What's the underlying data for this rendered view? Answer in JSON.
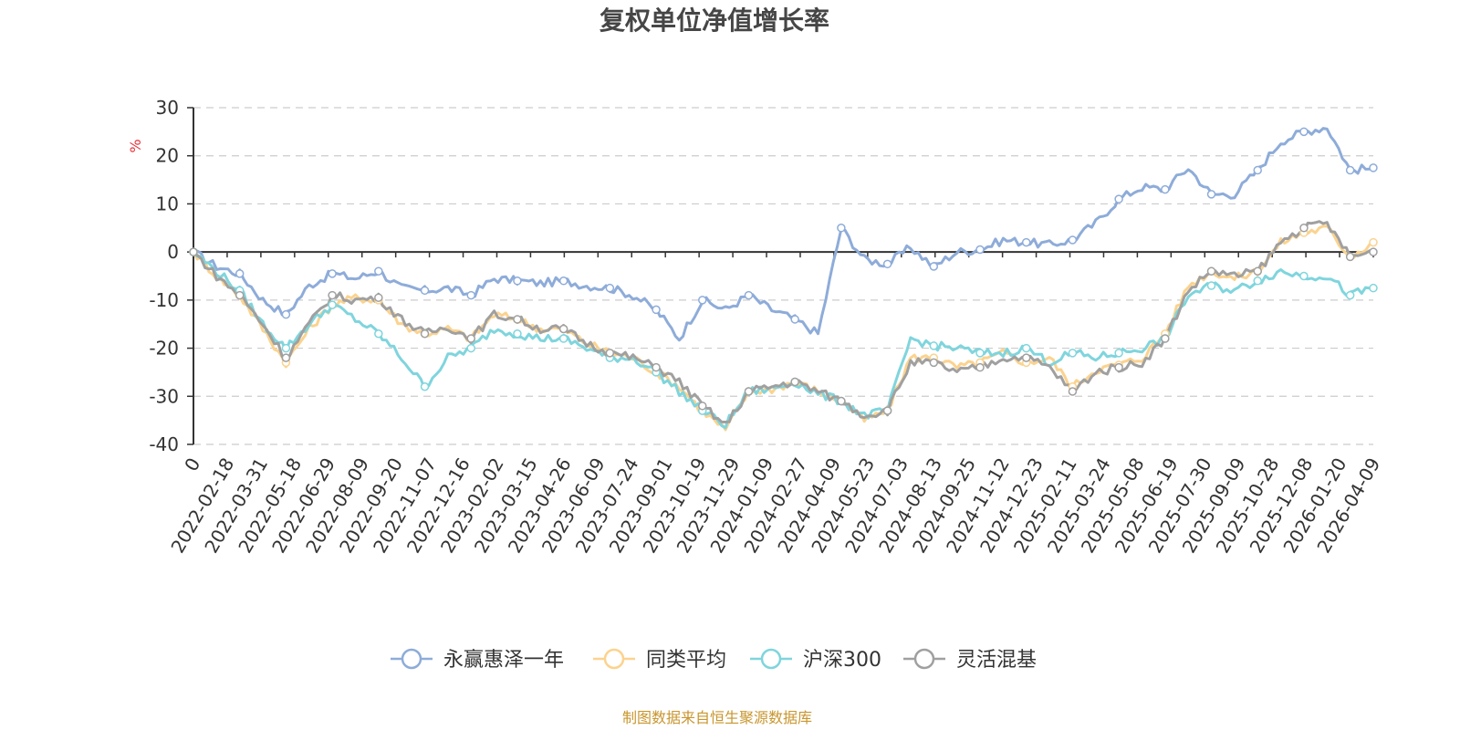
{
  "colors": {
    "fund": "#8eacd9",
    "peer_avg": "#fbd38f",
    "hs300": "#7fd5dd",
    "flex_mixed": "#a0a0a0",
    "unit": "#e8343b",
    "source": "#c8962e",
    "axis": "#333333",
    "grid": "#cccccc"
  },
  "chart_data": {
    "type": "line",
    "title": "复权单位净值增长率",
    "ylabel": "%",
    "ylim": [
      -40,
      30
    ],
    "yticks": [
      -40,
      -30,
      -20,
      -10,
      0,
      10,
      20,
      30
    ],
    "grid": true,
    "legend_position": "bottom",
    "x_tick_labels": [
      "0",
      "2022-02-18",
      "2022-03-31",
      "2022-05-18",
      "2022-06-29",
      "2022-08-09",
      "2022-09-20",
      "2022-11-07",
      "2022-12-16",
      "2023-02-02",
      "2023-03-15",
      "2023-04-26",
      "2023-06-09",
      "2023-07-24",
      "2023-09-01",
      "2023-10-19",
      "2023-11-29",
      "2024-01-09",
      "2024-02-27",
      "2024-04-09",
      "2024-05-23",
      "2024-07-03",
      "2024-08-13",
      "2024-09-25",
      "2024-11-12",
      "2024-12-23",
      "2025-02-11",
      "2025-03-24",
      "2025-05-08",
      "2025-06-19",
      "2025-07-30",
      "2025-09-09",
      "2025-10-28",
      "2025-12-08",
      "2026-01-20",
      "2026-04-09"
    ],
    "series": [
      {
        "name": "永赢惠泽一年",
        "color_key": "fund",
        "values": [
          0,
          -3,
          -4.5,
          -10,
          -13,
          -7,
          -4.5,
          -5.5,
          -4,
          -7.5,
          -8,
          -7.5,
          -9,
          -5.5,
          -6,
          -6.5,
          -6,
          -7,
          -7.5,
          -9,
          -12,
          -18,
          -10,
          -12,
          -9,
          -12,
          -14,
          -17,
          5,
          -1.5,
          -2.5,
          1,
          -3,
          0,
          0.5,
          2.5,
          2,
          1.5,
          2.5,
          6,
          11,
          13.5,
          13,
          17.5,
          12,
          12,
          17,
          23,
          25,
          26,
          17,
          17.5
        ]
      },
      {
        "name": "同类平均",
        "color_key": "peer_avg",
        "values": [
          0,
          -5,
          -9,
          -16,
          -23,
          -16,
          -11,
          -9.5,
          -10,
          -15,
          -17,
          -16,
          -18,
          -13,
          -14,
          -16,
          -16,
          -19,
          -21,
          -22,
          -25,
          -28,
          -33,
          -37,
          -29,
          -28.5,
          -27,
          -29,
          -31,
          -35,
          -33,
          -22,
          -22,
          -24,
          -23,
          -21,
          -23,
          -22,
          -28,
          -24.5,
          -23.5,
          -22,
          -17,
          -7,
          -4,
          -5.5,
          -4,
          2,
          4,
          5,
          -1,
          2
        ]
      },
      {
        "name": "沪深300",
        "color_key": "hs300",
        "values": [
          0,
          -4,
          -8,
          -15,
          -20,
          -15,
          -11,
          -14,
          -17,
          -22,
          -28,
          -22,
          -20,
          -16,
          -17,
          -18,
          -18,
          -20,
          -22,
          -22,
          -25,
          -29,
          -33,
          -36,
          -29,
          -28.5,
          -27,
          -29.5,
          -31,
          -34,
          -33,
          -18,
          -19.5,
          -20,
          -21,
          -21,
          -20,
          -23,
          -21,
          -22,
          -21,
          -20,
          -18,
          -9,
          -7,
          -8,
          -6,
          -4,
          -5,
          -5,
          -9,
          -7.5
        ]
      },
      {
        "name": "灵活混基",
        "color_key": "flex_mixed",
        "values": [
          0,
          -5,
          -9,
          -15,
          -22,
          -15,
          -9,
          -10,
          -9.5,
          -14,
          -17,
          -15.5,
          -18,
          -13,
          -14,
          -16,
          -16,
          -19,
          -21,
          -22,
          -24,
          -27,
          -32,
          -36,
          -29,
          -28,
          -27,
          -29,
          -31,
          -34,
          -33,
          -23,
          -23,
          -25,
          -24,
          -22,
          -22,
          -24,
          -29,
          -25,
          -24,
          -23,
          -18,
          -8,
          -4,
          -5,
          -4,
          2,
          5,
          6,
          -1,
          0
        ]
      }
    ]
  },
  "footer": {
    "source_text": "制图数据来自恒生聚源数据库"
  }
}
